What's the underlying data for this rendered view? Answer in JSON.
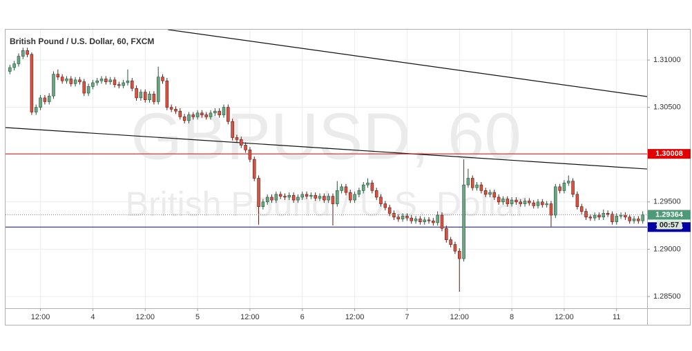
{
  "chart_data": {
    "type": "candlestick",
    "title": "British Pound / U.S. Dollar, 60, FXCM",
    "watermark": [
      "GBPUSD, 60",
      "British Pound / U.S. Dollar"
    ],
    "up_color": "#6ba583",
    "down_color": "#d75442",
    "xlim": [
      -1,
      146
    ],
    "xticks": [
      {
        "value": 7,
        "label": "12:00"
      },
      {
        "value": 19,
        "label": "4"
      },
      {
        "value": 31,
        "label": "12:00"
      },
      {
        "value": 43,
        "label": "5"
      },
      {
        "value": 55,
        "label": "12:00"
      },
      {
        "value": 67,
        "label": "6"
      },
      {
        "value": 79,
        "label": "12:00"
      },
      {
        "value": 91,
        "label": "7"
      },
      {
        "value": 103,
        "label": "12:00"
      },
      {
        "value": 115,
        "label": "8"
      },
      {
        "value": 127,
        "label": "12:00"
      },
      {
        "value": 139,
        "label": "11"
      }
    ],
    "ylim": [
      1.28376,
      1.31321
    ],
    "yticks": [
      {
        "value": 1.285,
        "label": "1.28500"
      },
      {
        "value": 1.29,
        "label": "1.29000"
      },
      {
        "value": 1.295,
        "label": "1.29500"
      },
      {
        "value": 1.3,
        "label": "1.30000"
      },
      {
        "value": 1.305,
        "label": "1.30500"
      },
      {
        "value": 1.31,
        "label": "1.31000"
      }
    ],
    "grid": true,
    "hlines": [
      {
        "value": 1.30008,
        "color": "#e00000"
      },
      {
        "value": 1.29234,
        "color": "#0000a0"
      }
    ],
    "last_price": 1.29364,
    "last_color": "#4e9a78",
    "countdown": "00:57",
    "trendlines": [
      {
        "x": [
          36.2,
          146
        ],
        "y": [
          1.31321,
          1.30614
        ]
      },
      {
        "x": [
          -1,
          146
        ],
        "y": [
          1.30286,
          1.29848
        ]
      }
    ],
    "ohlc": [
      [
        1.3088,
        1.3095,
        1.3085,
        1.3092
      ],
      [
        1.3092,
        1.3099,
        1.3089,
        1.3096
      ],
      [
        1.3096,
        1.3107,
        1.3093,
        1.3104
      ],
      [
        1.3104,
        1.3113,
        1.3101,
        1.311
      ],
      [
        1.311,
        1.3113,
        1.3103,
        1.3106
      ],
      [
        1.3106,
        1.3108,
        1.3042,
        1.3045
      ],
      [
        1.3045,
        1.3053,
        1.3042,
        1.305
      ],
      [
        1.305,
        1.3063,
        1.3047,
        1.306
      ],
      [
        1.306,
        1.3063,
        1.3053,
        1.3056
      ],
      [
        1.3056,
        1.3065,
        1.3053,
        1.3062
      ],
      [
        1.3062,
        1.3088,
        1.3059,
        1.3085
      ],
      [
        1.3085,
        1.309,
        1.3079,
        1.3082
      ],
      [
        1.3082,
        1.3085,
        1.3075,
        1.3078
      ],
      [
        1.3078,
        1.3083,
        1.3075,
        1.308
      ],
      [
        1.308,
        1.3083,
        1.3072,
        1.3075
      ],
      [
        1.3075,
        1.3082,
        1.3072,
        1.3079
      ],
      [
        1.3079,
        1.3082,
        1.3074,
        1.3077
      ],
      [
        1.3077,
        1.308,
        1.3062,
        1.3065
      ],
      [
        1.3065,
        1.3075,
        1.3062,
        1.3072
      ],
      [
        1.3072,
        1.3079,
        1.3069,
        1.3076
      ],
      [
        1.3076,
        1.3081,
        1.3073,
        1.3078
      ],
      [
        1.3078,
        1.3083,
        1.3075,
        1.308
      ],
      [
        1.308,
        1.3083,
        1.3074,
        1.3077
      ],
      [
        1.3077,
        1.3082,
        1.3074,
        1.3079
      ],
      [
        1.3079,
        1.3082,
        1.3071,
        1.3074
      ],
      [
        1.3074,
        1.3077,
        1.307,
        1.3073
      ],
      [
        1.3073,
        1.3079,
        1.307,
        1.3076
      ],
      [
        1.3076,
        1.309,
        1.3073,
        1.3078
      ],
      [
        1.3078,
        1.3081,
        1.3067,
        1.307
      ],
      [
        1.307,
        1.3073,
        1.3057,
        1.306
      ],
      [
        1.306,
        1.3069,
        1.3057,
        1.3066
      ],
      [
        1.3066,
        1.3069,
        1.3055,
        1.3058
      ],
      [
        1.3058,
        1.3067,
        1.3055,
        1.3064
      ],
      [
        1.3064,
        1.3067,
        1.3053,
        1.3056
      ],
      [
        1.3056,
        1.3093,
        1.3053,
        1.3082
      ],
      [
        1.3082,
        1.3085,
        1.3075,
        1.3078
      ],
      [
        1.3078,
        1.3081,
        1.3047,
        1.305
      ],
      [
        1.305,
        1.3053,
        1.3045,
        1.3048
      ],
      [
        1.3048,
        1.3051,
        1.3043,
        1.3046
      ],
      [
        1.3046,
        1.3049,
        1.3037,
        1.304
      ],
      [
        1.304,
        1.3043,
        1.3033,
        1.3036
      ],
      [
        1.3036,
        1.3045,
        1.3033,
        1.3042
      ],
      [
        1.3042,
        1.3045,
        1.3037,
        1.304
      ],
      [
        1.304,
        1.3047,
        1.3037,
        1.3044
      ],
      [
        1.3044,
        1.3047,
        1.3039,
        1.3042
      ],
      [
        1.3042,
        1.3045,
        1.3037,
        1.304
      ],
      [
        1.304,
        1.3047,
        1.3037,
        1.3044
      ],
      [
        1.3044,
        1.3049,
        1.3041,
        1.3046
      ],
      [
        1.3046,
        1.3049,
        1.3039,
        1.3042
      ],
      [
        1.3042,
        1.3053,
        1.3039,
        1.305
      ],
      [
        1.305,
        1.3053,
        1.3032,
        1.3035
      ],
      [
        1.3035,
        1.3038,
        1.3015,
        1.3018
      ],
      [
        1.3018,
        1.3021,
        1.3013,
        1.3016
      ],
      [
        1.3016,
        1.3019,
        1.3007,
        1.301
      ],
      [
        1.301,
        1.3013,
        1.3002,
        1.3005
      ],
      [
        1.3005,
        1.3008,
        1.2992,
        1.2995
      ],
      [
        1.2995,
        1.2998,
        1.2972,
        1.2975
      ],
      [
        1.2975,
        1.2978,
        1.2926,
        1.2945
      ],
      [
        1.2945,
        1.2953,
        1.2942,
        1.295
      ],
      [
        1.295,
        1.2958,
        1.2947,
        1.2955
      ],
      [
        1.2955,
        1.2958,
        1.2949,
        1.2952
      ],
      [
        1.2952,
        1.2961,
        1.2949,
        1.2958
      ],
      [
        1.2958,
        1.2961,
        1.2953,
        1.2956
      ],
      [
        1.2956,
        1.2959,
        1.2952,
        1.2955
      ],
      [
        1.2955,
        1.296,
        1.2952,
        1.2957
      ],
      [
        1.2957,
        1.296,
        1.2949,
        1.2952
      ],
      [
        1.2952,
        1.2958,
        1.2949,
        1.2955
      ],
      [
        1.2955,
        1.2961,
        1.2952,
        1.2958
      ],
      [
        1.2958,
        1.2961,
        1.2953,
        1.2956
      ],
      [
        1.2956,
        1.296,
        1.2953,
        1.2957
      ],
      [
        1.2957,
        1.296,
        1.2951,
        1.2954
      ],
      [
        1.2954,
        1.2959,
        1.2951,
        1.2956
      ],
      [
        1.2956,
        1.2959,
        1.2949,
        1.2952
      ],
      [
        1.2952,
        1.2959,
        1.2949,
        1.2956
      ],
      [
        1.2956,
        1.2959,
        1.2925,
        1.2948
      ],
      [
        1.2948,
        1.2972,
        1.2945,
        1.2962
      ],
      [
        1.2962,
        1.2969,
        1.2959,
        1.2966
      ],
      [
        1.2966,
        1.2969,
        1.2957,
        1.296
      ],
      [
        1.296,
        1.2963,
        1.2949,
        1.2952
      ],
      [
        1.2952,
        1.2961,
        1.2949,
        1.2958
      ],
      [
        1.2958,
        1.2965,
        1.2955,
        1.2962
      ],
      [
        1.2962,
        1.2971,
        1.2959,
        1.2968
      ],
      [
        1.2968,
        1.2975,
        1.2965,
        1.297
      ],
      [
        1.297,
        1.2973,
        1.2959,
        1.2962
      ],
      [
        1.2962,
        1.2965,
        1.2952,
        1.2955
      ],
      [
        1.2955,
        1.2958,
        1.2945,
        1.2948
      ],
      [
        1.2948,
        1.2951,
        1.2941,
        1.2944
      ],
      [
        1.2944,
        1.2947,
        1.2935,
        1.2938
      ],
      [
        1.2938,
        1.2941,
        1.2931,
        1.2934
      ],
      [
        1.2934,
        1.2937,
        1.2929,
        1.2932
      ],
      [
        1.2932,
        1.2938,
        1.2929,
        1.2935
      ],
      [
        1.2935,
        1.2938,
        1.293,
        1.2933
      ],
      [
        1.2933,
        1.2936,
        1.2927,
        1.293
      ],
      [
        1.293,
        1.2935,
        1.2927,
        1.2932
      ],
      [
        1.2932,
        1.2935,
        1.2926,
        1.2929
      ],
      [
        1.2929,
        1.2934,
        1.2926,
        1.2931
      ],
      [
        1.2931,
        1.2934,
        1.2927,
        1.293
      ],
      [
        1.293,
        1.2933,
        1.2925,
        1.2928
      ],
      [
        1.2928,
        1.294,
        1.2925,
        1.2936
      ],
      [
        1.2936,
        1.2939,
        1.2919,
        1.2922
      ],
      [
        1.2922,
        1.2925,
        1.2907,
        1.291
      ],
      [
        1.291,
        1.2913,
        1.2902,
        1.2905
      ],
      [
        1.2905,
        1.2908,
        1.2895,
        1.2898
      ],
      [
        1.2898,
        1.2901,
        1.2855,
        1.289
      ],
      [
        1.289,
        1.2995,
        1.2887,
        1.2968
      ],
      [
        1.2968,
        1.2985,
        1.2965,
        1.2975
      ],
      [
        1.2975,
        1.2978,
        1.2962,
        1.2965
      ],
      [
        1.2965,
        1.2971,
        1.2962,
        1.2968
      ],
      [
        1.2968,
        1.2971,
        1.2959,
        1.2962
      ],
      [
        1.2962,
        1.2965,
        1.2955,
        1.2958
      ],
      [
        1.2958,
        1.2963,
        1.2955,
        1.296
      ],
      [
        1.296,
        1.2963,
        1.2952,
        1.2955
      ],
      [
        1.2955,
        1.2958,
        1.2947,
        1.295
      ],
      [
        1.295,
        1.2956,
        1.2947,
        1.2953
      ],
      [
        1.2953,
        1.2956,
        1.2945,
        1.2948
      ],
      [
        1.2948,
        1.2955,
        1.2945,
        1.2952
      ],
      [
        1.2952,
        1.2955,
        1.2947,
        1.295
      ],
      [
        1.295,
        1.2953,
        1.2945,
        1.2948
      ],
      [
        1.2948,
        1.2954,
        1.2945,
        1.2951
      ],
      [
        1.2951,
        1.2954,
        1.2946,
        1.2949
      ],
      [
        1.2949,
        1.2952,
        1.2943,
        1.2946
      ],
      [
        1.2946,
        1.2953,
        1.2943,
        1.295
      ],
      [
        1.295,
        1.2953,
        1.2944,
        1.2947
      ],
      [
        1.2947,
        1.2951,
        1.2944,
        1.2948
      ],
      [
        1.2948,
        1.2951,
        1.2924,
        1.2936
      ],
      [
        1.2936,
        1.2969,
        1.2933,
        1.2966
      ],
      [
        1.2966,
        1.2969,
        1.2959,
        1.2962
      ],
      [
        1.2962,
        1.2973,
        1.2959,
        1.297
      ],
      [
        1.297,
        1.2978,
        1.2967,
        1.2972
      ],
      [
        1.2972,
        1.2975,
        1.2955,
        1.2958
      ],
      [
        1.2958,
        1.2961,
        1.2942,
        1.2945
      ],
      [
        1.2945,
        1.2948,
        1.2937,
        1.294
      ],
      [
        1.294,
        1.2943,
        1.2931,
        1.2934
      ],
      [
        1.2934,
        1.2937,
        1.293,
        1.2933
      ],
      [
        1.2933,
        1.2939,
        1.293,
        1.2936
      ],
      [
        1.2936,
        1.2939,
        1.2931,
        1.2934
      ],
      [
        1.2934,
        1.2942,
        1.2931,
        1.2938
      ],
      [
        1.2938,
        1.2941,
        1.2934,
        1.2937
      ],
      [
        1.2937,
        1.294,
        1.2926,
        1.2929
      ],
      [
        1.2929,
        1.2938,
        1.2926,
        1.2935
      ],
      [
        1.2935,
        1.2939,
        1.2932,
        1.2936
      ],
      [
        1.2936,
        1.2939,
        1.2931,
        1.2934
      ],
      [
        1.2934,
        1.2937,
        1.2927,
        1.293
      ],
      [
        1.293,
        1.2935,
        1.2927,
        1.2932
      ],
      [
        1.2932,
        1.2935,
        1.2927,
        1.293
      ],
      [
        1.293,
        1.294,
        1.2927,
        1.29364
      ]
    ]
  }
}
